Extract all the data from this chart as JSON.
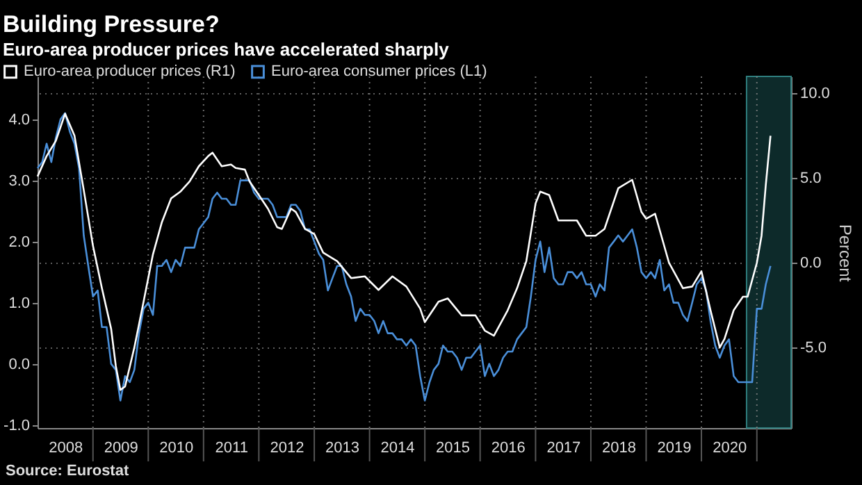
{
  "chart_data": {
    "type": "line",
    "title": "Building Pressure?",
    "subtitle": "Euro-area producer prices have accelerated sharply",
    "annotations": [
      "Source: Eurostat"
    ],
    "x": [
      "2008-01",
      "2008-02",
      "2008-03",
      "2008-04",
      "2008-05",
      "2008-06",
      "2008-07",
      "2008-08",
      "2008-09",
      "2008-10",
      "2008-11",
      "2008-12",
      "2009-01",
      "2009-02",
      "2009-03",
      "2009-04",
      "2009-05",
      "2009-06",
      "2009-07",
      "2009-08",
      "2009-09",
      "2009-10",
      "2009-11",
      "2009-12",
      "2010-01",
      "2010-02",
      "2010-03",
      "2010-04",
      "2010-05",
      "2010-06",
      "2010-07",
      "2010-08",
      "2010-09",
      "2010-10",
      "2010-11",
      "2010-12",
      "2011-01",
      "2011-02",
      "2011-03",
      "2011-04",
      "2011-05",
      "2011-06",
      "2011-07",
      "2011-08",
      "2011-09",
      "2011-10",
      "2011-11",
      "2011-12",
      "2012-01",
      "2012-02",
      "2012-03",
      "2012-04",
      "2012-05",
      "2012-06",
      "2012-07",
      "2012-08",
      "2012-09",
      "2012-10",
      "2012-11",
      "2012-12",
      "2013-01",
      "2013-02",
      "2013-03",
      "2013-04",
      "2013-05",
      "2013-06",
      "2013-07",
      "2013-08",
      "2013-09",
      "2013-10",
      "2013-11",
      "2013-12",
      "2014-01",
      "2014-02",
      "2014-03",
      "2014-04",
      "2014-05",
      "2014-06",
      "2014-07",
      "2014-08",
      "2014-09",
      "2014-10",
      "2014-11",
      "2014-12",
      "2015-01",
      "2015-02",
      "2015-03",
      "2015-04",
      "2015-05",
      "2015-06",
      "2015-07",
      "2015-08",
      "2015-09",
      "2015-10",
      "2015-11",
      "2015-12",
      "2016-01",
      "2016-02",
      "2016-03",
      "2016-04",
      "2016-05",
      "2016-06",
      "2016-07",
      "2016-08",
      "2016-09",
      "2016-10",
      "2016-11",
      "2016-12",
      "2017-01",
      "2017-02",
      "2017-03",
      "2017-04",
      "2017-05",
      "2017-06",
      "2017-07",
      "2017-08",
      "2017-09",
      "2017-10",
      "2017-11",
      "2017-12",
      "2018-01",
      "2018-02",
      "2018-03",
      "2018-04",
      "2018-05",
      "2018-06",
      "2018-07",
      "2018-08",
      "2018-09",
      "2018-10",
      "2018-11",
      "2018-12",
      "2019-01",
      "2019-02",
      "2019-03",
      "2019-04",
      "2019-05",
      "2019-06",
      "2019-07",
      "2019-08",
      "2019-09",
      "2019-10",
      "2019-11",
      "2019-12",
      "2020-01",
      "2020-02",
      "2020-03",
      "2020-04",
      "2020-05",
      "2020-06",
      "2020-07",
      "2020-08",
      "2020-09",
      "2020-10",
      "2020-11",
      "2020-12",
      "2021-01",
      "2021-02",
      "2021-03",
      "2021-04"
    ],
    "series": [
      {
        "name": "Euro-area producer prices (R1)",
        "color": "#ffffff",
        "axis": "y2",
        "x": [
          "2008-01",
          "2008-03",
          "2008-05",
          "2008-07",
          "2008-09",
          "2008-11",
          "2009-01",
          "2009-03",
          "2009-05",
          "2009-06",
          "2009-07",
          "2009-08",
          "2009-10",
          "2009-12",
          "2010-02",
          "2010-04",
          "2010-06",
          "2010-08",
          "2010-10",
          "2010-12",
          "2011-02",
          "2011-03",
          "2011-05",
          "2011-07",
          "2011-08",
          "2011-10",
          "2011-11",
          "2012-01",
          "2012-03",
          "2012-05",
          "2012-06",
          "2012-08",
          "2012-09",
          "2012-11",
          "2013-01",
          "2013-03",
          "2013-06",
          "2013-09",
          "2013-12",
          "2014-03",
          "2014-06",
          "2014-09",
          "2014-12",
          "2015-01",
          "2015-04",
          "2015-06",
          "2015-09",
          "2015-12",
          "2016-02",
          "2016-04",
          "2016-07",
          "2016-09",
          "2016-11",
          "2017-01",
          "2017-02",
          "2017-04",
          "2017-06",
          "2017-08",
          "2017-10",
          "2017-12",
          "2018-02",
          "2018-04",
          "2018-07",
          "2018-10",
          "2018-12",
          "2019-01",
          "2019-03",
          "2019-06",
          "2019-09",
          "2019-11",
          "2020-01",
          "2020-03",
          "2020-05",
          "2020-06",
          "2020-08",
          "2020-10",
          "2020-11",
          "2021-01",
          "2021-02",
          "2021-03",
          "2021-04"
        ],
        "values": [
          5.1,
          6.3,
          7.2,
          8.8,
          7.5,
          4.3,
          1.0,
          -1.5,
          -3.9,
          -6.1,
          -7.5,
          -7.3,
          -5.0,
          -2.3,
          0.5,
          2.4,
          3.8,
          4.2,
          4.8,
          5.7,
          6.3,
          6.5,
          5.7,
          5.8,
          5.6,
          5.5,
          4.8,
          4.0,
          3.2,
          2.1,
          2.0,
          3.2,
          3.0,
          2.0,
          1.7,
          0.6,
          0.1,
          -0.9,
          -0.8,
          -1.6,
          -0.8,
          -1.4,
          -2.7,
          -3.5,
          -2.3,
          -2.1,
          -3.1,
          -3.1,
          -4.0,
          -4.3,
          -2.8,
          -1.5,
          0.1,
          3.5,
          4.2,
          4.0,
          2.5,
          2.5,
          2.5,
          1.6,
          1.6,
          2.0,
          4.4,
          4.9,
          3.0,
          2.6,
          2.9,
          0.0,
          -1.5,
          -1.4,
          -0.5,
          -2.8,
          -5.0,
          -4.5,
          -2.8,
          -2.0,
          -2.0,
          0.0,
          1.6,
          4.6,
          7.5
        ]
      },
      {
        "name": "Euro-area consumer prices (L1)",
        "color": "#4a8fd9",
        "axis": "y",
        "values": [
          3.2,
          3.3,
          3.6,
          3.3,
          3.7,
          4.0,
          4.1,
          3.8,
          3.6,
          3.2,
          2.1,
          1.6,
          1.1,
          1.2,
          0.6,
          0.6,
          0.0,
          -0.1,
          -0.6,
          -0.2,
          -0.3,
          -0.1,
          0.5,
          0.9,
          1.0,
          0.8,
          1.6,
          1.6,
          1.7,
          1.5,
          1.7,
          1.6,
          1.9,
          1.9,
          1.9,
          2.2,
          2.3,
          2.4,
          2.7,
          2.8,
          2.7,
          2.7,
          2.6,
          2.6,
          3.0,
          3.0,
          3.0,
          2.8,
          2.7,
          2.7,
          2.7,
          2.6,
          2.4,
          2.4,
          2.4,
          2.6,
          2.6,
          2.5,
          2.2,
          2.2,
          2.0,
          1.8,
          1.7,
          1.2,
          1.4,
          1.6,
          1.6,
          1.3,
          1.1,
          0.7,
          0.9,
          0.8,
          0.8,
          0.7,
          0.5,
          0.7,
          0.5,
          0.5,
          0.4,
          0.4,
          0.3,
          0.4,
          0.3,
          -0.2,
          -0.6,
          -0.3,
          -0.1,
          0.0,
          0.3,
          0.2,
          0.2,
          0.1,
          -0.1,
          0.1,
          0.1,
          0.2,
          0.3,
          -0.2,
          0.0,
          -0.2,
          -0.1,
          0.1,
          0.2,
          0.2,
          0.4,
          0.5,
          0.6,
          1.1,
          1.7,
          2.0,
          1.5,
          1.9,
          1.4,
          1.3,
          1.3,
          1.5,
          1.5,
          1.4,
          1.5,
          1.3,
          1.3,
          1.1,
          1.3,
          1.2,
          1.9,
          2.0,
          2.1,
          2.0,
          2.1,
          2.2,
          1.9,
          1.5,
          1.4,
          1.5,
          1.4,
          1.7,
          1.2,
          1.3,
          1.0,
          1.0,
          0.8,
          0.7,
          1.0,
          1.3,
          1.4,
          1.2,
          0.7,
          0.3,
          0.1,
          0.3,
          0.4,
          -0.2,
          -0.3,
          -0.3,
          -0.3,
          -0.3,
          0.9,
          0.9,
          1.3,
          1.6
        ]
      }
    ],
    "xlim": [
      "2008-01-01",
      "2021-08-15"
    ],
    "xticks": [
      {
        "value": "2008-07-01",
        "label": "2008"
      },
      {
        "value": "2009-01-01",
        "label": null
      },
      {
        "value": "2009-07-01",
        "label": "2009"
      },
      {
        "value": "2010-01-01",
        "label": null
      },
      {
        "value": "2010-07-01",
        "label": "2010"
      },
      {
        "value": "2011-01-01",
        "label": null
      },
      {
        "value": "2011-07-01",
        "label": "2011"
      },
      {
        "value": "2012-01-01",
        "label": null
      },
      {
        "value": "2012-07-01",
        "label": "2012"
      },
      {
        "value": "2013-01-01",
        "label": null
      },
      {
        "value": "2013-07-01",
        "label": "2013"
      },
      {
        "value": "2014-01-01",
        "label": null
      },
      {
        "value": "2014-07-01",
        "label": "2014"
      },
      {
        "value": "2015-01-01",
        "label": null
      },
      {
        "value": "2015-07-01",
        "label": "2015"
      },
      {
        "value": "2016-01-01",
        "label": null
      },
      {
        "value": "2016-07-01",
        "label": "2016"
      },
      {
        "value": "2017-01-01",
        "label": null
      },
      {
        "value": "2017-07-01",
        "label": "2017"
      },
      {
        "value": "2018-01-01",
        "label": null
      },
      {
        "value": "2018-07-01",
        "label": "2018"
      },
      {
        "value": "2019-01-01",
        "label": null
      },
      {
        "value": "2019-07-01",
        "label": "2019"
      },
      {
        "value": "2020-01-01",
        "label": null
      },
      {
        "value": "2020-07-01",
        "label": "2020"
      },
      {
        "value": "2021-01-01",
        "label": null
      }
    ],
    "ylim": [
      -1.05,
      4.7
    ],
    "yticks": [
      {
        "value": -1,
        "label": "-1.0"
      },
      {
        "value": 0,
        "label": "0.0"
      },
      {
        "value": 1,
        "label": "1.0"
      },
      {
        "value": 2,
        "label": "2.0"
      },
      {
        "value": 3,
        "label": "3.0"
      },
      {
        "value": 4,
        "label": "4.0"
      }
    ],
    "y2lim": [
      -9.75,
      11.0
    ],
    "y2ticks": [
      {
        "value": -5,
        "label": "-5.0"
      },
      {
        "value": 0,
        "label": "0.0"
      },
      {
        "value": 5,
        "label": "5.0"
      },
      {
        "value": 10,
        "label": "10.0"
      }
    ],
    "y2label": "Percent",
    "bands": [
      {
        "axis": "x",
        "from": "2020-10-25",
        "to": "2021-08-15",
        "color": "#0d2a2a"
      }
    ],
    "grid": true,
    "legend": "top left"
  }
}
